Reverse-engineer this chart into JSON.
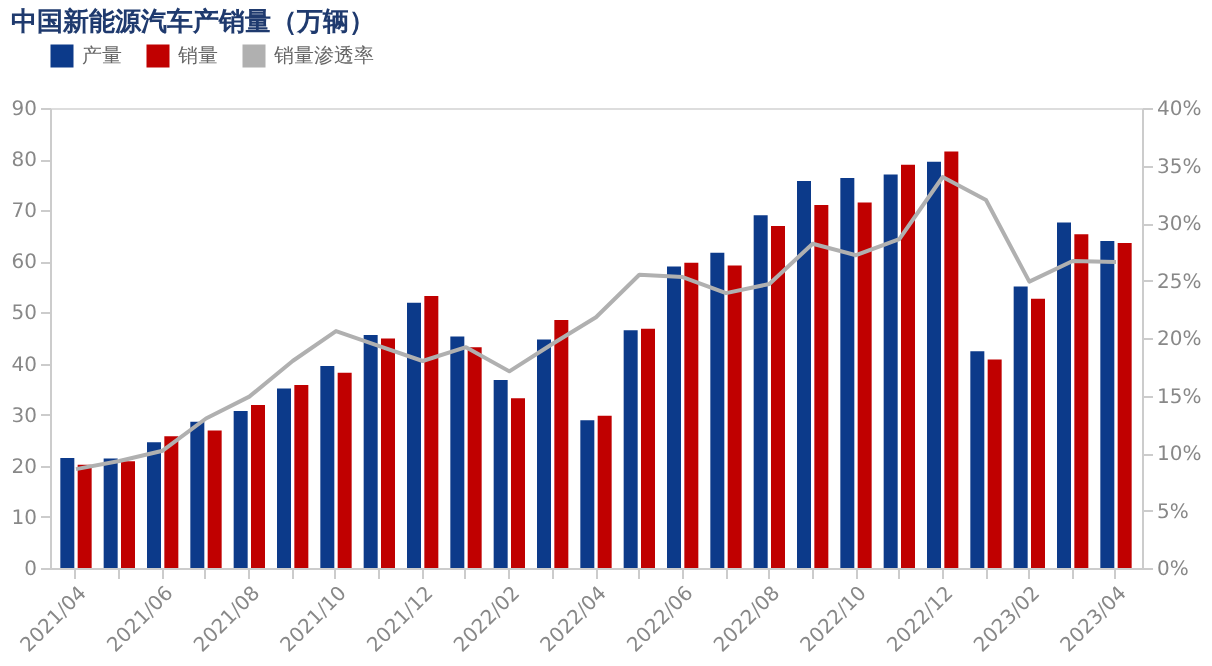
{
  "chart_data": {
    "type": "bar",
    "title": "中国新能源汽车产销量（万辆）",
    "legend": "top",
    "categories": [
      "2021/04",
      null,
      "2021/06",
      null,
      "2021/08",
      null,
      "2021/10",
      null,
      "2021/12",
      null,
      "2022/02",
      null,
      "2022/04",
      null,
      "2022/06",
      null,
      "2022/08",
      null,
      "2022/10",
      null,
      "2022/12",
      null,
      "2023/02",
      null,
      "2023/04"
    ],
    "series": [
      {
        "name": "产量",
        "color": "#0c3a8a",
        "values": [
          21.5,
          21.4,
          24.6,
          28.6,
          30.7,
          35.1,
          39.5,
          45.6,
          51.9,
          45.3,
          36.8,
          44.7,
          28.9,
          46.5,
          59.0,
          61.7,
          69.0,
          75.7,
          76.3,
          77.0,
          79.5,
          42.4,
          55.1,
          67.6,
          64.0
        ]
      },
      {
        "name": "销量",
        "color": "#c00000",
        "values": [
          20.2,
          20.9,
          25.8,
          26.9,
          31.9,
          35.8,
          38.2,
          44.9,
          53.2,
          43.2,
          33.2,
          48.5,
          29.8,
          46.8,
          59.7,
          59.2,
          66.9,
          71.0,
          71.5,
          78.9,
          81.5,
          40.8,
          52.7,
          65.3,
          63.6
        ]
      },
      {
        "name": "销量渗透率",
        "type": "line",
        "axis": "y2",
        "color": "#b0b0b0",
        "values": [
          8.6,
          9.3,
          10.2,
          13.0,
          14.9,
          18.0,
          20.6,
          19.3,
          18.0,
          19.2,
          17.1,
          19.5,
          21.8,
          25.5,
          25.3,
          23.9,
          24.7,
          28.2,
          27.2,
          28.6,
          34.0,
          32.0,
          24.9,
          26.7,
          26.6
        ]
      }
    ],
    "ylim": [
      0,
      90
    ],
    "yticks": [
      0,
      10,
      20,
      30,
      40,
      50,
      60,
      70,
      80,
      90
    ],
    "y2lim": [
      0,
      40
    ],
    "y2ticks": [
      {
        "value": 0,
        "label": "0%"
      },
      {
        "value": 5,
        "label": "5%"
      },
      {
        "value": 10,
        "label": "10%"
      },
      {
        "value": 15,
        "label": "15%"
      },
      {
        "value": 20,
        "label": "20%"
      },
      {
        "value": 25,
        "label": "25%"
      },
      {
        "value": 30,
        "label": "30%"
      },
      {
        "value": 35,
        "label": "35%"
      },
      {
        "value": 40,
        "label": "40%"
      }
    ]
  }
}
